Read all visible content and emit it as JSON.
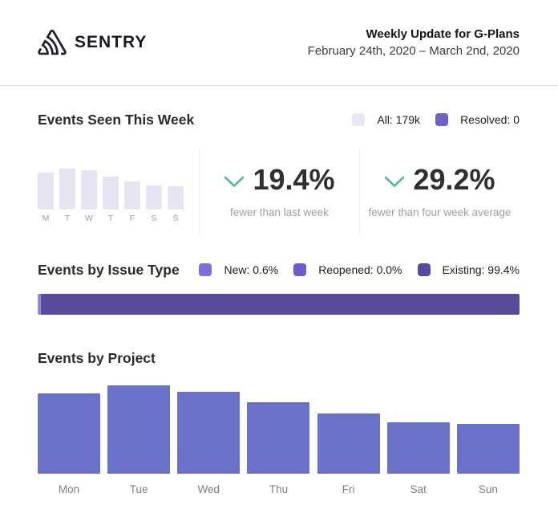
{
  "header": {
    "logo_text": "SENTRY",
    "title": "Weekly Update for G-Plans",
    "date_range": "February 24th, 2020 – March 2nd, 2020"
  },
  "events_seen": {
    "heading": "Events Seen This Week",
    "legend": [
      {
        "label": "All: 179k",
        "color": "#e9e7f6"
      },
      {
        "label": "Resolved: 0",
        "color": "#6f61c9"
      }
    ],
    "stats": [
      {
        "direction": "down",
        "value": "19.4%",
        "caption": "fewer than last week"
      },
      {
        "direction": "down",
        "value": "29.2%",
        "caption": "fewer than four week average"
      }
    ],
    "trend_color": "#57be8c"
  },
  "issue_type": {
    "heading": "Events by Issue Type",
    "legend": [
      {
        "label": "New: 0.6%",
        "color": "#7d6fd7"
      },
      {
        "label": "Reopened: 0.0%",
        "color": "#6c5fcb"
      },
      {
        "label": "Existing: 99.4%",
        "color": "#574b9e"
      }
    ]
  },
  "project": {
    "heading": "Events by Project"
  },
  "chart_data": [
    {
      "type": "bar",
      "name": "events-seen-daily",
      "title": "Events Seen This Week (daily)",
      "categories": [
        "M",
        "T",
        "W",
        "T",
        "F",
        "S",
        "S"
      ],
      "values": [
        90,
        100,
        96,
        80,
        69,
        59,
        57
      ],
      "values_unit": "percent_of_max",
      "bar_color": "#e8e5f3",
      "legend": [
        "All: 179k",
        "Resolved: 0"
      ],
      "grid": false,
      "total_label": "All: 179k"
    },
    {
      "type": "stacked-bar-horizontal",
      "name": "events-by-issue-type",
      "title": "Events by Issue Type",
      "segments": [
        {
          "label": "New",
          "percent": 0.6,
          "color": "#9388da"
        },
        {
          "label": "Reopened",
          "percent": 0.0,
          "color": "#6c5fcb"
        },
        {
          "label": "Existing",
          "percent": 99.4,
          "color": "#564b9a"
        }
      ]
    },
    {
      "type": "bar",
      "name": "events-by-project",
      "title": "Events by Project",
      "categories": [
        "Mon",
        "Tue",
        "Wed",
        "Thu",
        "Fri",
        "Sat",
        "Sun"
      ],
      "values": [
        91,
        100,
        93,
        81,
        68,
        58,
        56
      ],
      "values_unit": "percent_of_max",
      "bar_color": "#6972c8",
      "grid": false
    }
  ]
}
